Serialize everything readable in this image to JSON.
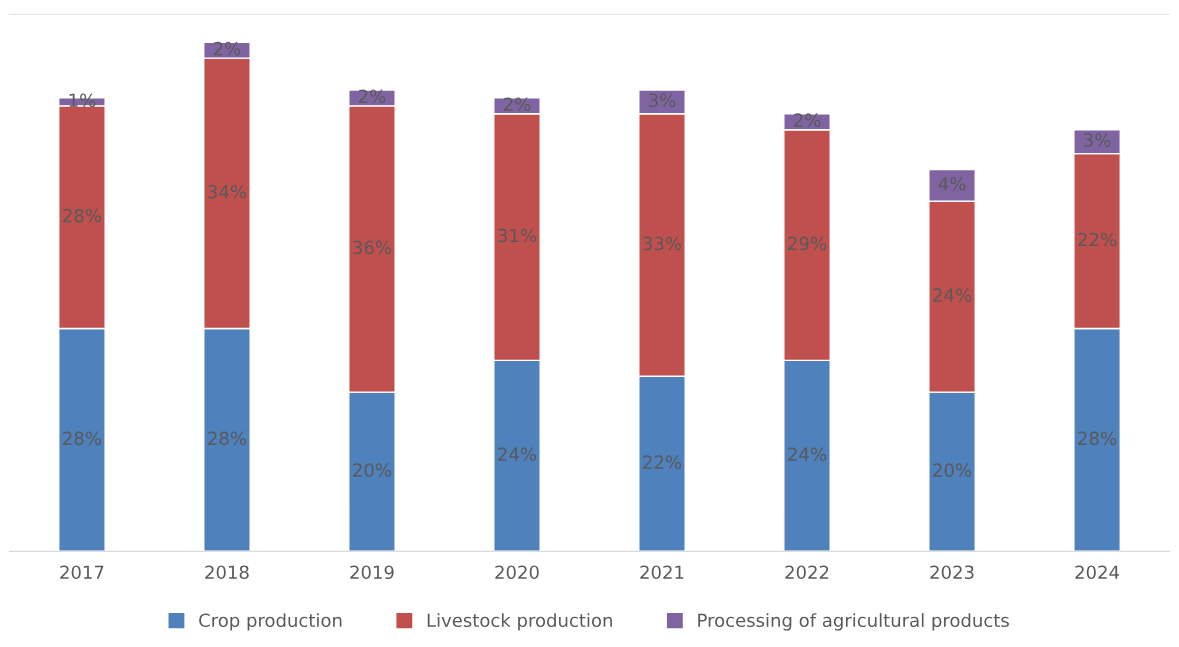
{
  "chart_data": {
    "type": "bar",
    "stacked": true,
    "legend": "bottom",
    "grid": false,
    "categories": [
      "2017",
      "2018",
      "2019",
      "2020",
      "2021",
      "2022",
      "2023",
      "2024"
    ],
    "series": [
      {
        "name": "Crop production",
        "color": "#4f81bd",
        "values": [
          28,
          28,
          20,
          24,
          22,
          24,
          20,
          28
        ],
        "value_labels": [
          "28%",
          "28%",
          "20%",
          "24%",
          "22%",
          "24%",
          "20%",
          "28%"
        ]
      },
      {
        "name": "Livestock production",
        "color": "#c0504d",
        "values": [
          28,
          34,
          36,
          31,
          33,
          29,
          24,
          22
        ],
        "value_labels": [
          "28%",
          "34%",
          "36%",
          "31%",
          "33%",
          "29%",
          "24%",
          "22%"
        ]
      },
      {
        "name": "Processing of agricultural products",
        "color": "#8064a2",
        "values": [
          1,
          2,
          2,
          2,
          3,
          2,
          4,
          3
        ],
        "value_labels": [
          "1%",
          "2%",
          "2%",
          "2%",
          "3%",
          "2%",
          "4%",
          "3%"
        ]
      }
    ]
  }
}
